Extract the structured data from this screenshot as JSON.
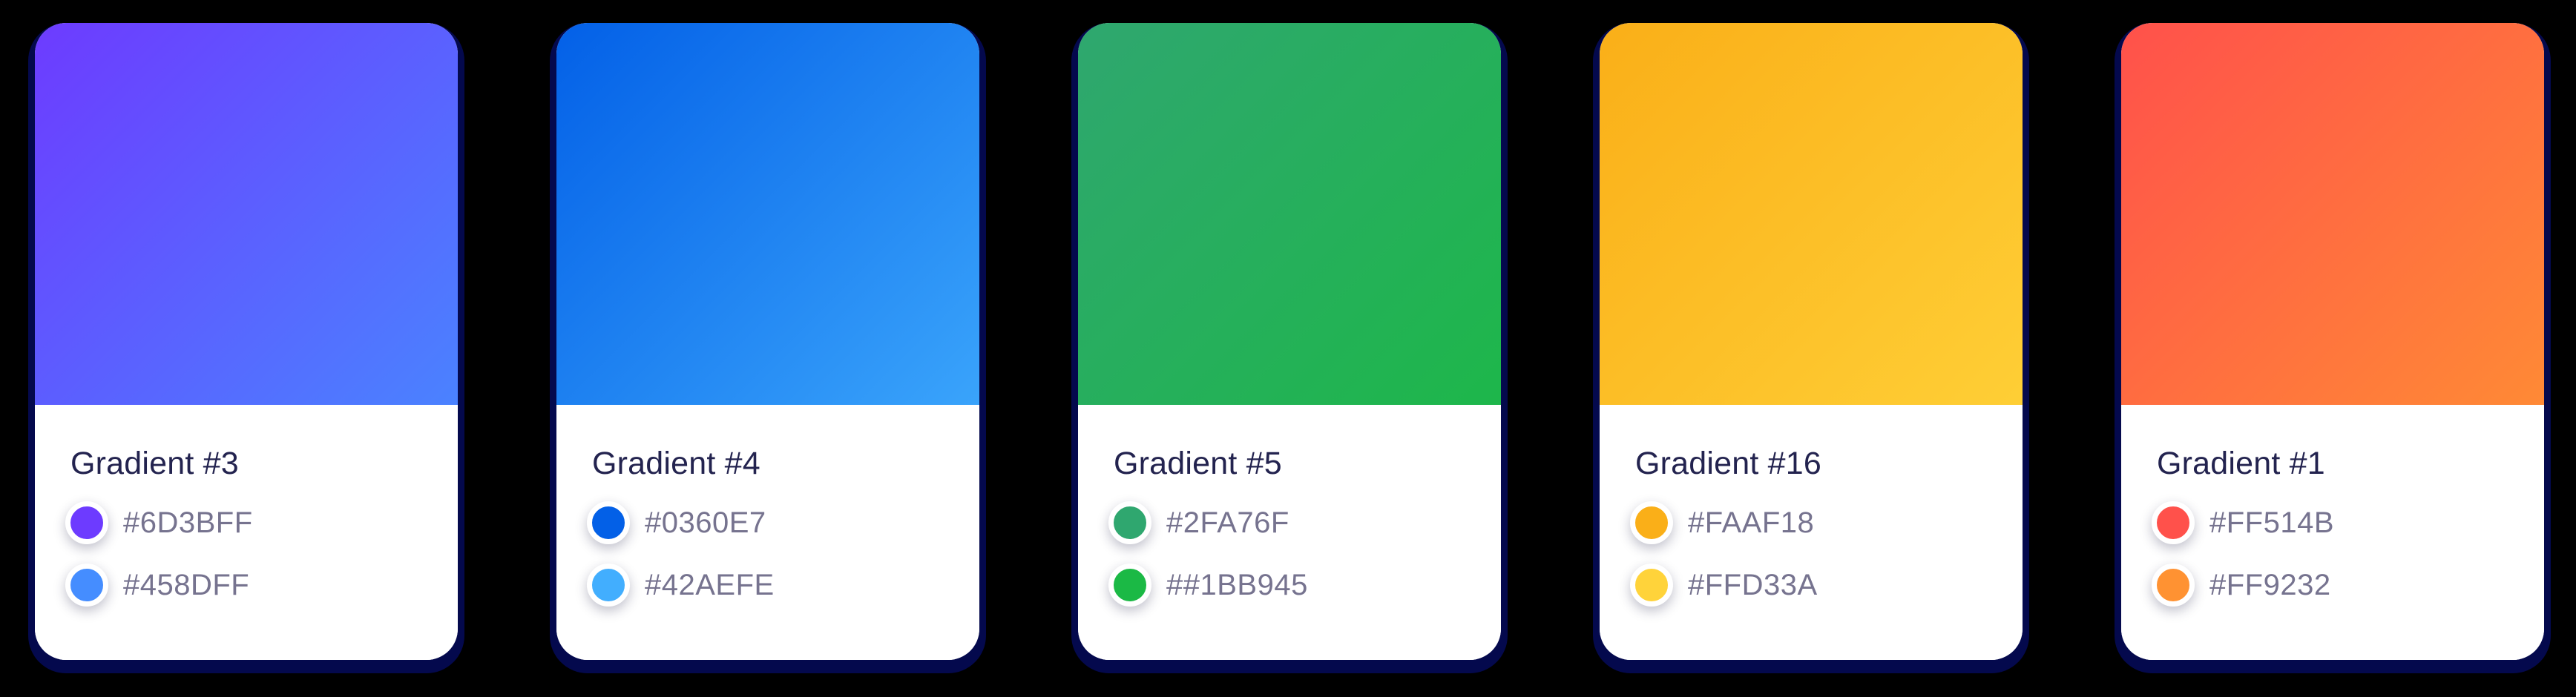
{
  "page": {
    "background": "#000000"
  },
  "card_style": {
    "surface": "#FFFFFF",
    "shadow": "#04094D",
    "title_color": "#23234F",
    "hex_label_color": "#76738F",
    "gradient_angle_deg": 135
  },
  "cards": [
    {
      "title": "Gradient #3",
      "colors": [
        {
          "label": "#6D3BFF",
          "hex": "#6D3BFF"
        },
        {
          "label": "#458DFF",
          "hex": "#458DFF"
        }
      ]
    },
    {
      "title": "Gradient #4",
      "colors": [
        {
          "label": "#0360E7",
          "hex": "#0360E7"
        },
        {
          "label": "#42AEFE",
          "hex": "#42AEFE"
        }
      ]
    },
    {
      "title": "Gradient #5",
      "colors": [
        {
          "label": "#2FA76F",
          "hex": "#2FA76F"
        },
        {
          "label": "##1BB945",
          "hex": "#1BB945"
        }
      ]
    },
    {
      "title": "Gradient #16",
      "colors": [
        {
          "label": "#FAAF18",
          "hex": "#FAAF18"
        },
        {
          "label": "#FFD33A",
          "hex": "#FFD33A"
        }
      ]
    },
    {
      "title": "Gradient #1",
      "colors": [
        {
          "label": "#FF514B",
          "hex": "#FF514B"
        },
        {
          "label": "#FF9232",
          "hex": "#FF9232"
        }
      ]
    }
  ]
}
